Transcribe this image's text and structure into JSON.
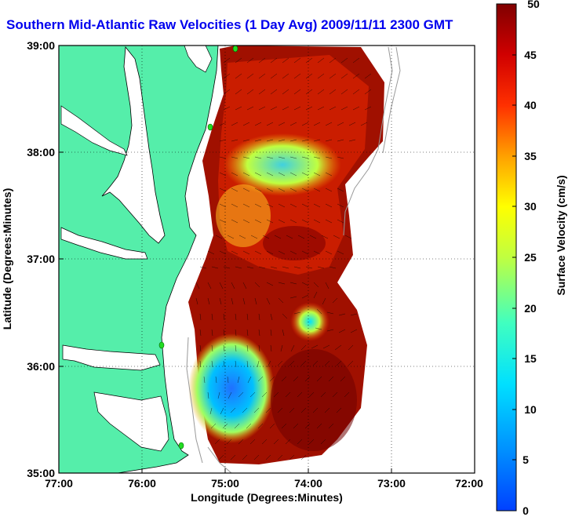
{
  "title": "Southern Mid-Atlantic Raw Velocities (1 Day Avg) 2009/11/11 2300 GMT",
  "xlabel": "Longitude (Degrees:Minutes)",
  "ylabel": "Latitude (Degrees:Minutes)",
  "xticks": [
    "77:00",
    "76:00",
    "75:00",
    "74:00",
    "73:00",
    "72:00"
  ],
  "yticks": [
    "39:00",
    "38:00",
    "37:00",
    "36:00",
    "35:00"
  ],
  "colorbar": {
    "label": "Surface Velocity (cm/s)",
    "ticks": [
      "50",
      "45",
      "40",
      "35",
      "30",
      "25",
      "20",
      "15",
      "10",
      "5",
      "0"
    ]
  },
  "colors": {
    "land": "#55eeaa",
    "title": "#0000ee",
    "station": "#22dd22"
  },
  "chart_data": {
    "type": "map",
    "xlim": [
      -77,
      -72
    ],
    "ylim": [
      35,
      39
    ],
    "grid": true,
    "colorbar_range": [
      0,
      50
    ]
  }
}
